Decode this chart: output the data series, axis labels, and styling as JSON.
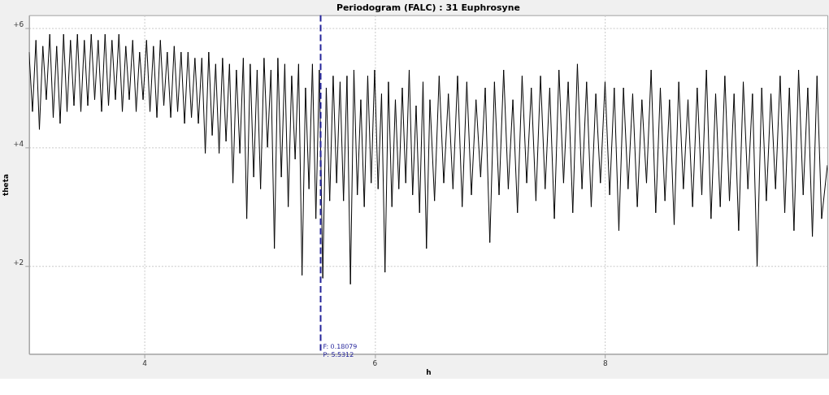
{
  "chart_data": {
    "type": "line",
    "title": "Periodogram (FALC) : 31 Euphrosyne",
    "xlabel": "h",
    "ylabel": "theta",
    "xlim": [
      3,
      9.93
    ],
    "xticks": [
      4,
      6,
      8
    ],
    "ylim": [
      0.53,
      6.22
    ],
    "yticks": [
      {
        "value": 2,
        "label": "+2"
      },
      {
        "value": 4,
        "label": "+4"
      },
      {
        "value": 6,
        "label": "+6"
      }
    ],
    "grid": true,
    "marker": "none",
    "line_style": "solid",
    "ref_lines": [
      {
        "axis": "x",
        "value": 5.5312,
        "label": "F: 0.18079\nP: 5.5312",
        "color": "#23239a",
        "line_style": "dashed"
      }
    ],
    "series": [
      {
        "color": "#000000",
        "x": [
          3.0,
          3.03,
          3.06,
          3.09,
          3.12,
          3.15,
          3.18,
          3.21,
          3.24,
          3.27,
          3.3,
          3.33,
          3.36,
          3.39,
          3.42,
          3.45,
          3.48,
          3.51,
          3.54,
          3.57,
          3.6,
          3.63,
          3.66,
          3.69,
          3.72,
          3.75,
          3.78,
          3.81,
          3.84,
          3.87,
          3.9,
          3.93,
          3.96,
          3.99,
          4.02,
          4.05,
          4.08,
          4.11,
          4.14,
          4.17,
          4.2,
          4.23,
          4.26,
          4.29,
          4.32,
          4.35,
          4.38,
          4.41,
          4.44,
          4.47,
          4.5,
          4.53,
          4.56,
          4.59,
          4.62,
          4.65,
          4.68,
          4.71,
          4.74,
          4.77,
          4.8,
          4.83,
          4.86,
          4.89,
          4.92,
          4.95,
          4.98,
          5.01,
          5.04,
          5.07,
          5.1,
          5.13,
          5.16,
          5.19,
          5.22,
          5.25,
          5.28,
          5.31,
          5.34,
          5.37,
          5.4,
          5.43,
          5.46,
          5.49,
          5.52,
          5.55,
          5.58,
          5.61,
          5.64,
          5.67,
          5.7,
          5.73,
          5.76,
          5.79,
          5.82,
          5.85,
          5.88,
          5.91,
          5.94,
          5.97,
          6.0,
          6.03,
          6.06,
          6.09,
          6.12,
          6.15,
          6.18,
          6.21,
          6.24,
          6.27,
          6.3,
          6.33,
          6.36,
          6.39,
          6.42,
          6.45,
          6.48,
          6.52,
          6.56,
          6.6,
          6.64,
          6.68,
          6.72,
          6.76,
          6.8,
          6.84,
          6.88,
          6.92,
          6.96,
          7.0,
          7.04,
          7.08,
          7.12,
          7.16,
          7.2,
          7.24,
          7.28,
          7.32,
          7.36,
          7.4,
          7.44,
          7.48,
          7.52,
          7.56,
          7.6,
          7.64,
          7.68,
          7.72,
          7.76,
          7.8,
          7.84,
          7.88,
          7.92,
          7.96,
          8.0,
          8.04,
          8.08,
          8.12,
          8.16,
          8.2,
          8.24,
          8.28,
          8.32,
          8.36,
          8.4,
          8.44,
          8.48,
          8.52,
          8.56,
          8.6,
          8.64,
          8.68,
          8.72,
          8.76,
          8.8,
          8.84,
          8.88,
          8.92,
          8.96,
          9.0,
          9.04,
          9.08,
          9.12,
          9.16,
          9.2,
          9.24,
          9.28,
          9.32,
          9.36,
          9.4,
          9.44,
          9.48,
          9.52,
          9.56,
          9.6,
          9.64,
          9.68,
          9.72,
          9.76,
          9.8,
          9.84,
          9.88,
          9.93
        ],
        "values": [
          5.6,
          4.6,
          5.8,
          4.3,
          5.7,
          4.8,
          5.9,
          4.5,
          5.7,
          4.4,
          5.9,
          4.6,
          5.8,
          4.7,
          5.9,
          4.6,
          5.8,
          4.7,
          5.9,
          4.8,
          5.8,
          4.6,
          5.9,
          4.7,
          5.8,
          4.8,
          5.9,
          4.6,
          5.7,
          4.8,
          5.8,
          4.6,
          5.6,
          4.8,
          5.8,
          4.6,
          5.7,
          4.5,
          5.8,
          4.7,
          5.6,
          4.5,
          5.7,
          4.6,
          5.6,
          4.4,
          5.6,
          4.5,
          5.5,
          4.4,
          5.5,
          3.9,
          5.6,
          4.2,
          5.4,
          3.9,
          5.5,
          4.1,
          5.4,
          3.4,
          5.3,
          3.9,
          5.5,
          2.8,
          5.4,
          3.5,
          5.3,
          3.3,
          5.5,
          4.0,
          5.3,
          2.3,
          5.5,
          3.5,
          5.4,
          3.0,
          5.2,
          3.8,
          5.4,
          1.85,
          5.0,
          3.3,
          5.4,
          2.8,
          5.3,
          1.8,
          5.0,
          3.1,
          5.2,
          3.4,
          5.1,
          3.1,
          5.2,
          1.7,
          5.3,
          3.2,
          4.8,
          3.0,
          5.2,
          3.4,
          5.3,
          3.3,
          4.9,
          1.9,
          5.1,
          3.0,
          4.8,
          3.3,
          5.0,
          3.4,
          5.3,
          3.2,
          4.7,
          2.9,
          5.1,
          2.3,
          4.8,
          3.1,
          5.2,
          3.4,
          4.9,
          3.3,
          5.2,
          3.0,
          5.1,
          3.2,
          4.8,
          3.5,
          5.0,
          2.4,
          5.1,
          3.2,
          5.3,
          3.3,
          4.8,
          2.9,
          5.2,
          3.4,
          5.0,
          3.1,
          5.2,
          3.3,
          5.0,
          2.8,
          5.3,
          3.4,
          5.1,
          2.9,
          5.4,
          3.3,
          5.1,
          3.0,
          4.9,
          3.4,
          5.1,
          3.2,
          5.0,
          2.6,
          5.0,
          3.3,
          4.9,
          3.0,
          4.8,
          3.4,
          5.3,
          2.9,
          5.0,
          3.1,
          4.8,
          2.7,
          5.1,
          3.3,
          4.8,
          3.0,
          5.0,
          3.2,
          5.3,
          2.8,
          4.9,
          3.0,
          5.2,
          3.1,
          4.9,
          2.6,
          5.1,
          3.3,
          4.9,
          2.0,
          5.0,
          3.1,
          4.9,
          3.3,
          5.2,
          2.9,
          5.0,
          2.6,
          5.3,
          3.2,
          5.0,
          2.5,
          5.2,
          2.8,
          3.7
        ]
      }
    ]
  }
}
